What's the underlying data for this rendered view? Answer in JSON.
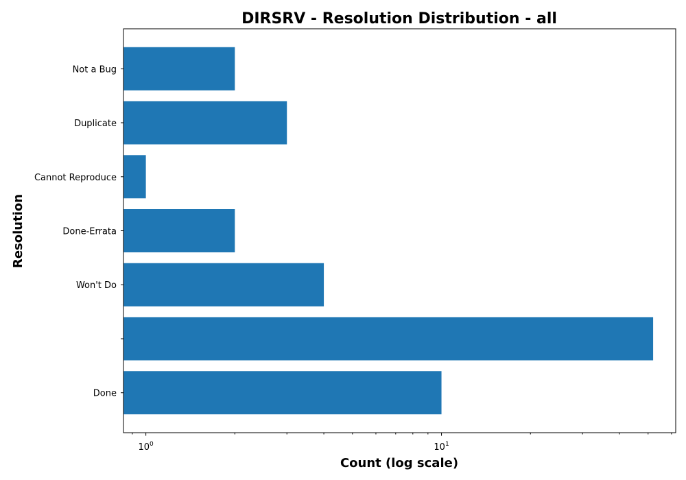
{
  "chart_data": {
    "type": "bar",
    "orientation": "horizontal",
    "title": "DIRSRV - Resolution Distribution - all",
    "xlabel": "Count (log scale)",
    "ylabel": "Resolution",
    "x_scale": "log",
    "xlim": [
      0.84,
      62
    ],
    "x_major_ticks": [
      {
        "value": 1,
        "base": "10",
        "exp": "0"
      },
      {
        "value": 10,
        "base": "10",
        "exp": "1"
      }
    ],
    "categories": [
      "Done",
      "",
      "Won't Do",
      "Done-Errata",
      "Cannot Reproduce",
      "Duplicate",
      "Not a Bug"
    ],
    "values": [
      10,
      52,
      4,
      2,
      1,
      3,
      2
    ],
    "color": "#1f77b4",
    "grid": false,
    "legend": "none"
  }
}
